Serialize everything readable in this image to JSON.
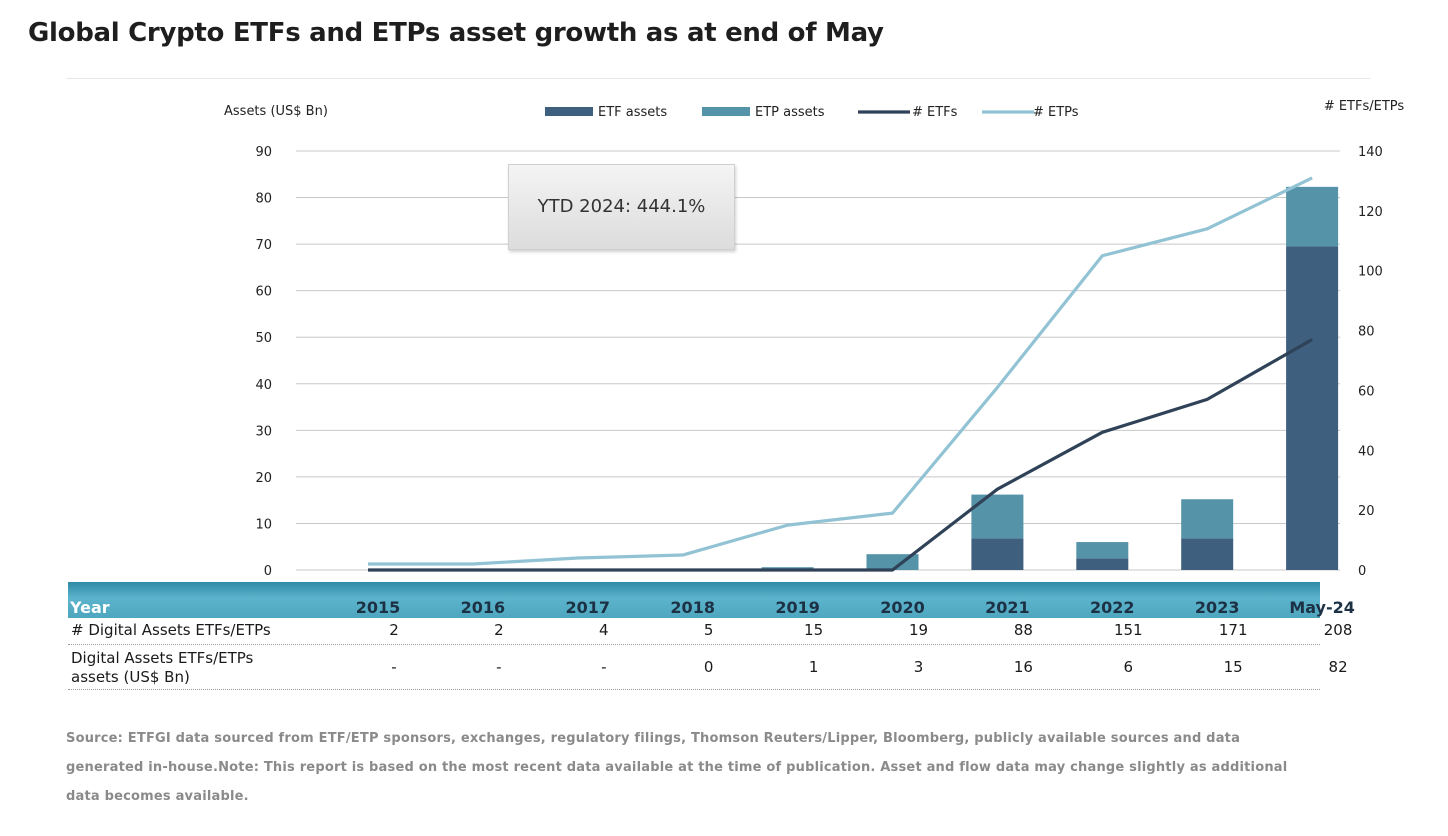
{
  "title": "Global Crypto ETFs and ETPs asset growth as at end of May",
  "annotation": "YTD 2024: 444.1%",
  "colors": {
    "etf_assets": "#3f5f7f",
    "etp_assets": "#5593a8",
    "num_etfs": "#2f4257",
    "num_etps": "#92c3d4",
    "table_header": "#4ea6bf",
    "grid": "#c8c8c8"
  },
  "chart_data": {
    "type": "bar",
    "categories": [
      "2015",
      "2016",
      "2017",
      "2018",
      "2019",
      "2020",
      "2021",
      "2022",
      "2023",
      "May-24"
    ],
    "y_left_label": "Assets (US$ Bn)",
    "y_right_label": "# ETFs/ETPs",
    "y_left_range": [
      0,
      90
    ],
    "y_left_ticks": [
      0,
      10,
      20,
      30,
      40,
      50,
      60,
      70,
      80,
      90
    ],
    "y_right_range": [
      0,
      140
    ],
    "y_right_ticks": [
      0,
      20,
      40,
      60,
      80,
      100,
      120,
      140
    ],
    "grid": true,
    "legend_position": "top",
    "stacked_bars": [
      {
        "name": "ETF assets",
        "axis": "left",
        "values": [
          0,
          0,
          0,
          0,
          0,
          0,
          6.8,
          2.5,
          6.8,
          69.5
        ]
      },
      {
        "name": "ETP assets",
        "axis": "left",
        "values": [
          0,
          0,
          0,
          0,
          0.6,
          3.4,
          9.4,
          3.5,
          8.4,
          12.8
        ]
      }
    ],
    "lines": [
      {
        "name": "# ETFs",
        "axis": "right",
        "values": [
          0,
          0,
          0,
          0,
          0,
          0,
          27,
          46,
          57,
          77
        ]
      },
      {
        "name": "# ETPs",
        "axis": "right",
        "values": [
          2,
          2,
          4,
          5,
          15,
          19,
          61,
          105,
          114,
          131
        ]
      }
    ]
  },
  "table": {
    "header_label": "Year",
    "years": [
      "2015",
      "2016",
      "2017",
      "2018",
      "2019",
      "2020",
      "2021",
      "2022",
      "2023",
      "May-24"
    ],
    "rows": [
      {
        "label_lines": [
          "# Digital Assets ETFs/ETPs"
        ],
        "values": [
          "2",
          "2",
          "4",
          "5",
          "15",
          "19",
          "88",
          "151",
          "171",
          "208"
        ]
      },
      {
        "label_lines": [
          "Digital Assets ETFs/ETPs",
          "assets (US$ Bn)"
        ],
        "values": [
          "-",
          "-",
          "-",
          "0",
          "1",
          "3",
          "16",
          "6",
          "15",
          "82"
        ]
      }
    ]
  },
  "source": "Source: ETFGI data sourced from ETF/ETP sponsors, exchanges, regulatory filings, Thomson Reuters/Lipper, Bloomberg, publicly available sources and data generated in-house.Note: This report is based on the most recent data available at the time of publication. Asset and flow data may change slightly as additional data becomes available."
}
